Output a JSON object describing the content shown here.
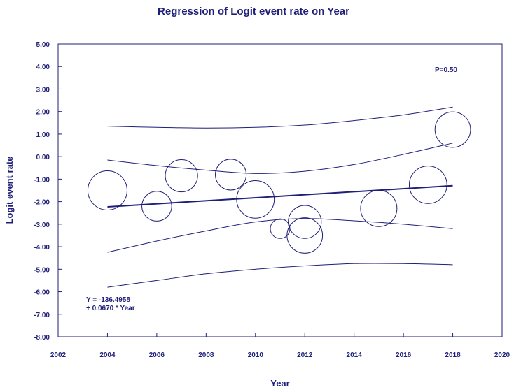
{
  "colors": {
    "ink": "#1f1f7a",
    "frame": "#1f1f7a",
    "background": "#ffffff"
  },
  "chart_data": {
    "type": "scatter",
    "title": "Regression of Logit event rate on Year",
    "xlabel": "Year",
    "ylabel": "Logit event rate",
    "xlim": [
      2002,
      2020
    ],
    "ylim": [
      -8.0,
      5.0
    ],
    "xticks": [
      2002,
      2004,
      2006,
      2008,
      2010,
      2012,
      2014,
      2016,
      2018,
      2020
    ],
    "yticks": [
      5.0,
      4.0,
      3.0,
      2.0,
      1.0,
      0.0,
      -1.0,
      -2.0,
      -3.0,
      -4.0,
      -5.0,
      -6.0,
      -7.0,
      -8.0
    ],
    "xtick_labels": [
      "2002",
      "2004",
      "2006",
      "2008",
      "2010",
      "2012",
      "2014",
      "2016",
      "2018",
      "2020"
    ],
    "ytick_labels": [
      "5.00",
      "4.00",
      "3.00",
      "2.00",
      "1.00",
      "0.00",
      "-1.00",
      "-2.00",
      "-3.00",
      "-4.00",
      "-5.00",
      "-6.00",
      "-7.00",
      "-8.00"
    ],
    "points": [
      {
        "x": 2004,
        "y": -1.5,
        "weight": 1.0
      },
      {
        "x": 2006,
        "y": -2.2,
        "weight": 0.58
      },
      {
        "x": 2007,
        "y": -0.85,
        "weight": 0.68
      },
      {
        "x": 2009,
        "y": -0.8,
        "weight": 0.62
      },
      {
        "x": 2010,
        "y": -1.9,
        "weight": 0.92
      },
      {
        "x": 2011,
        "y": -3.2,
        "weight": 0.25
      },
      {
        "x": 2012,
        "y": -2.9,
        "weight": 0.71
      },
      {
        "x": 2012,
        "y": -3.5,
        "weight": 0.82
      },
      {
        "x": 2015,
        "y": -2.3,
        "weight": 0.86
      },
      {
        "x": 2017,
        "y": -1.25,
        "weight": 0.92
      },
      {
        "x": 2018,
        "y": 1.2,
        "weight": 0.82
      }
    ],
    "regression": {
      "intercept": -136.4958,
      "slope": 0.067,
      "x_range": [
        2004,
        2018
      ]
    },
    "confidence_interval": {
      "x": [
        2004,
        2006,
        2008,
        2010,
        2012,
        2014,
        2016,
        2018
      ],
      "upper": [
        -0.15,
        -0.4,
        -0.6,
        -0.75,
        -0.65,
        -0.35,
        0.1,
        0.6
      ],
      "lower": [
        -4.25,
        -3.75,
        -3.3,
        -2.9,
        -2.75,
        -2.85,
        -3.0,
        -3.2
      ]
    },
    "prediction_interval": {
      "x": [
        2004,
        2006,
        2008,
        2010,
        2012,
        2014,
        2016,
        2018
      ],
      "upper": [
        1.35,
        1.3,
        1.27,
        1.3,
        1.4,
        1.6,
        1.85,
        2.2
      ],
      "lower": [
        -5.8,
        -5.5,
        -5.2,
        -5.0,
        -4.85,
        -4.75,
        -4.75,
        -4.8
      ]
    },
    "annotations": {
      "p_value": "P=0.50",
      "equation_line1": "Y = -136.4958",
      "equation_line2": "+ 0.0670 * Year"
    }
  }
}
